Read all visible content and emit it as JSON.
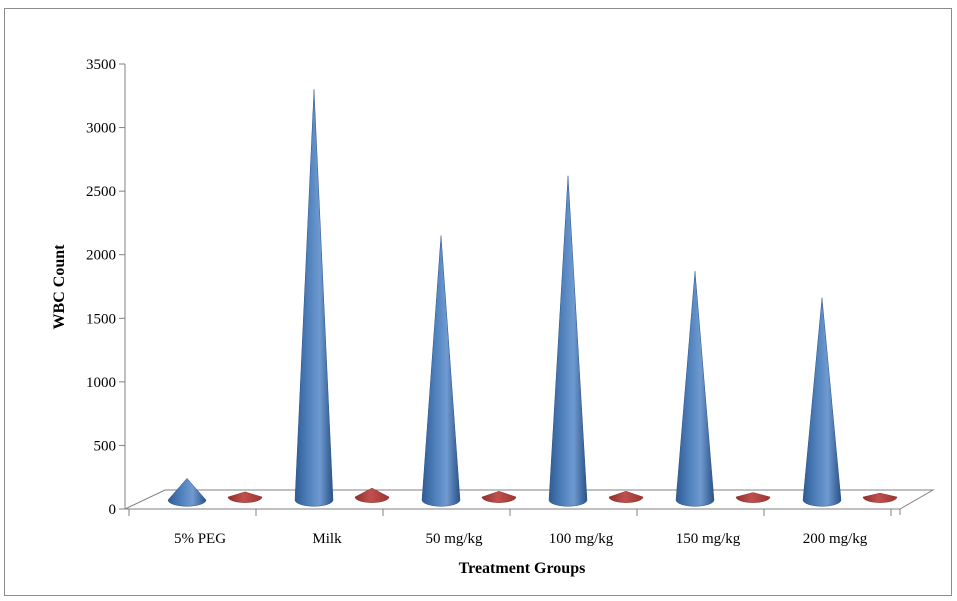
{
  "chart_data": {
    "type": "bar",
    "style": "3d-cone",
    "title": "",
    "xlabel": "Treatment  Groups",
    "ylabel": "WBC Count",
    "ylim": [
      0,
      3500
    ],
    "yticks": [
      "0",
      "500",
      "1000",
      "1500",
      "2000",
      "2500",
      "3000",
      "3500"
    ],
    "categories": [
      "5% PEG",
      "Milk",
      "50 mg/kg",
      "100 mg/kg",
      "150 mg/kg",
      "200 mg/kg"
    ],
    "series": [
      {
        "color": "#4f81bd",
        "values": [
          170,
          3230,
          2080,
          2550,
          1800,
          1590
        ]
      },
      {
        "color": "#c0504d",
        "values": [
          40,
          70,
          45,
          45,
          35,
          30
        ]
      }
    ],
    "grid": false,
    "legend": "none"
  }
}
